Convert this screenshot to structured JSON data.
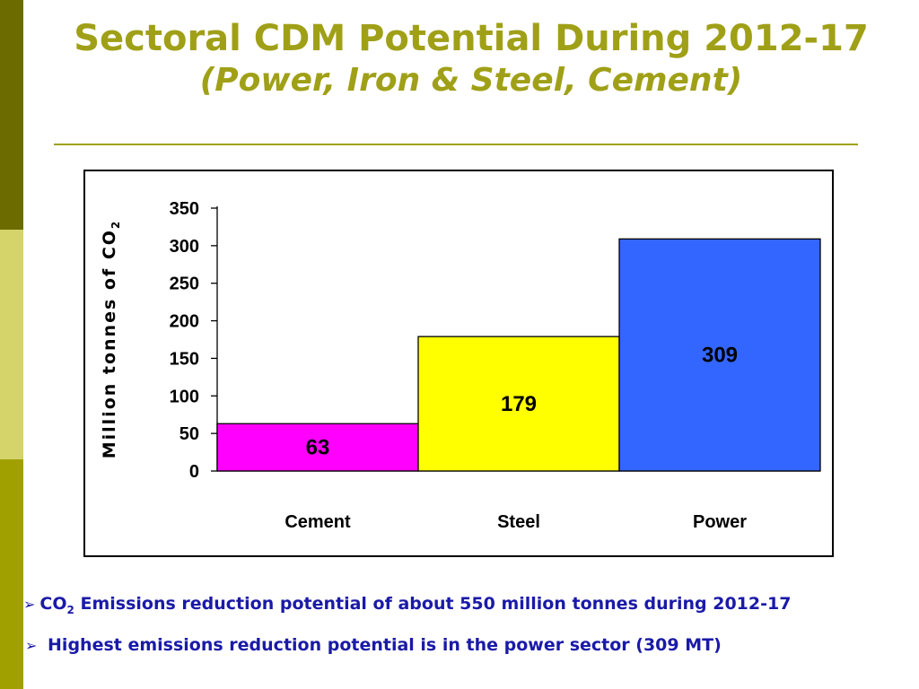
{
  "title": {
    "line1": "Sectoral CDM Potential During 2012-17",
    "line2": "(Power, Iron & Steel, Cement)"
  },
  "bullets": [
    {
      "pre": "CO",
      "sub": "2",
      "text": " Emissions reduction potential of about 550 million tonnes during 2012-17"
    },
    {
      "text": "Highest emissions reduction potential is in the power sector (309 MT)"
    }
  ],
  "chart_data": {
    "type": "bar",
    "categories": [
      "Cement",
      "Steel",
      "Power"
    ],
    "values": [
      63,
      179,
      309
    ],
    "data_labels": [
      "63",
      "179",
      "309"
    ],
    "colors": [
      "#ff00ff",
      "#ffff00",
      "#3366ff"
    ],
    "ylabel_main": "Million tonnes of  CO",
    "ylabel_sub": "2",
    "ylim": [
      0,
      350
    ],
    "yticks": [
      0,
      50,
      100,
      150,
      200,
      250,
      300,
      350
    ],
    "grid": false,
    "legend": "none"
  }
}
